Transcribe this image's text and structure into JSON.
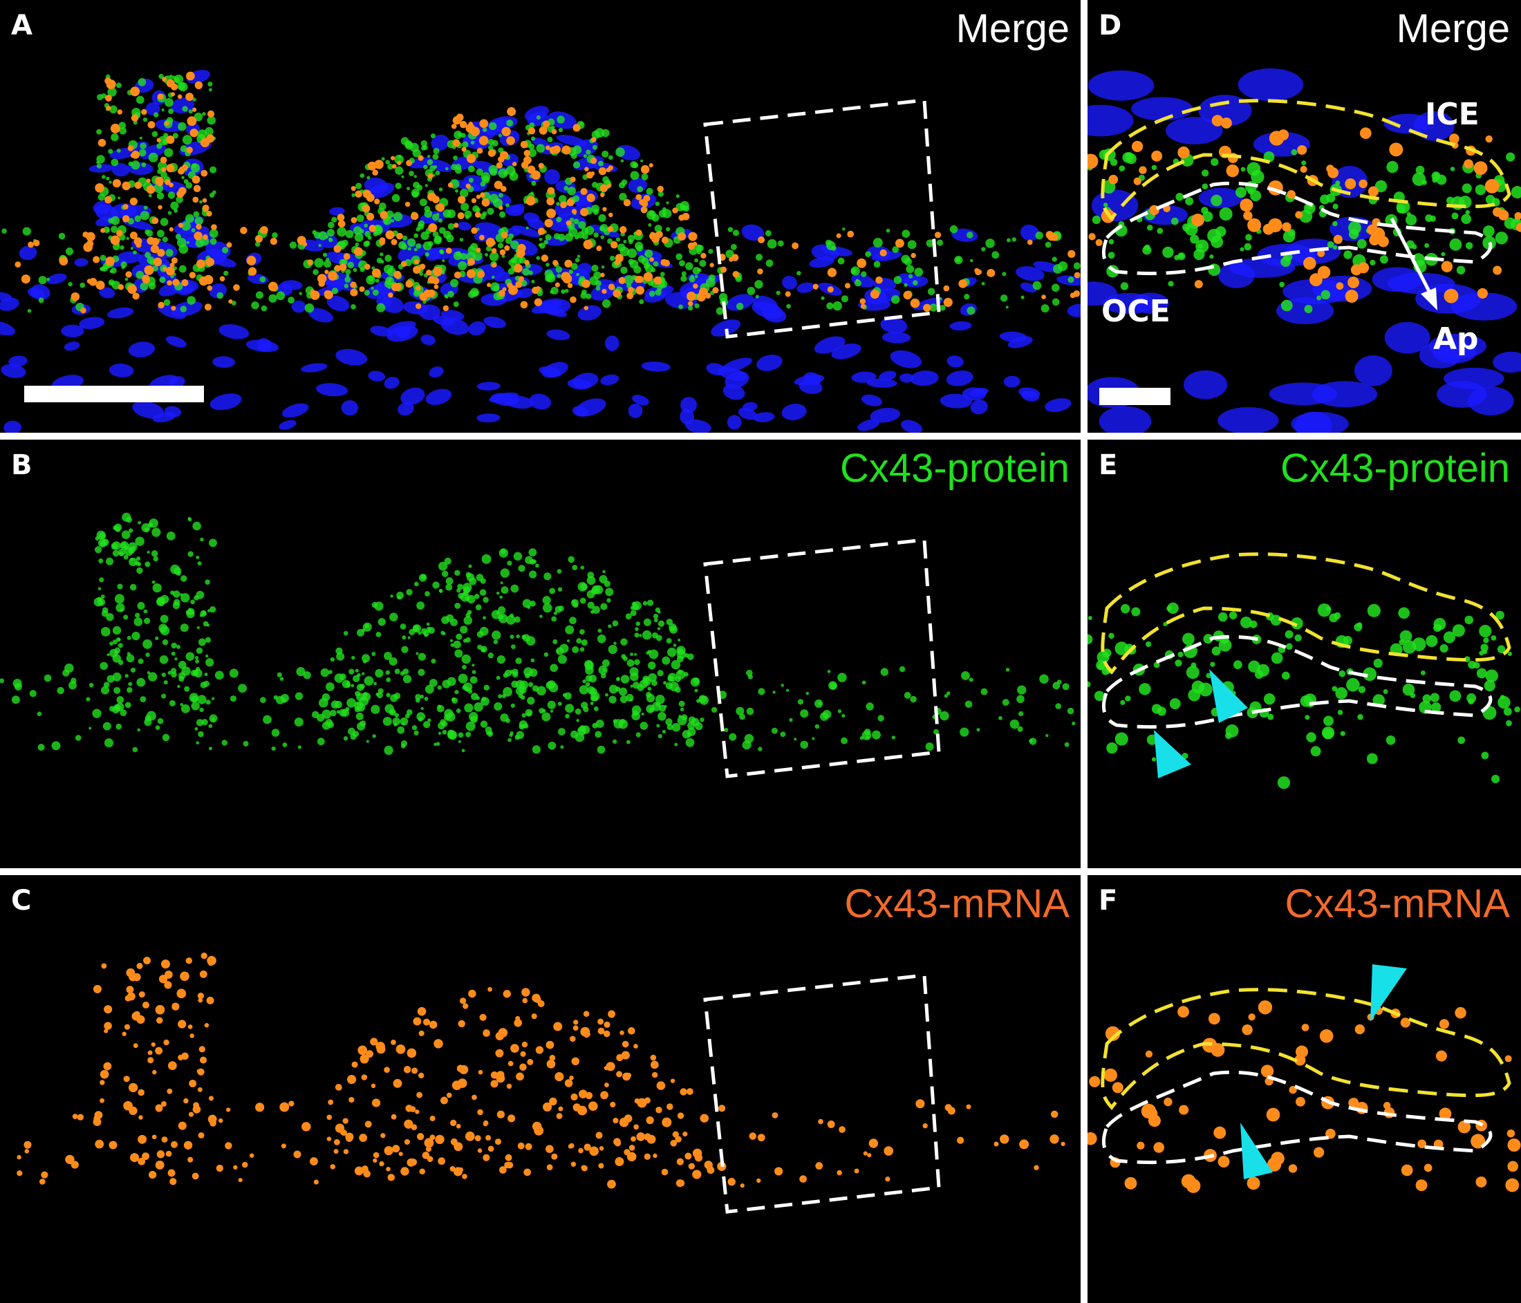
{
  "panels": {
    "A": {
      "letter": "A",
      "title": "Merge"
    },
    "B": {
      "letter": "B",
      "title": "Cx43-protein"
    },
    "C": {
      "letter": "C",
      "title": "Cx43-mRNA"
    },
    "D": {
      "letter": "D",
      "title": "Merge",
      "labels": {
        "ice": "ICE",
        "oce": "OCE",
        "ap": "Ap"
      }
    },
    "E": {
      "letter": "E",
      "title": "Cx43-protein"
    },
    "F": {
      "letter": "F",
      "title": "Cx43-mRNA"
    }
  },
  "colors": {
    "merge_title": "#ffffff",
    "protein": "#22e01e",
    "mrna": "#f26a2a",
    "nuclei": "#1a1aff",
    "mrna_dots": "#ff8c1a",
    "inner_outline": "#f2e230",
    "outer_outline": "#ffffff",
    "arrowhead": "#18e0e8",
    "background": "#000000"
  },
  "icons": {
    "arrowhead": "cyan-triangle-arrowhead",
    "arrow": "white-arrow"
  }
}
